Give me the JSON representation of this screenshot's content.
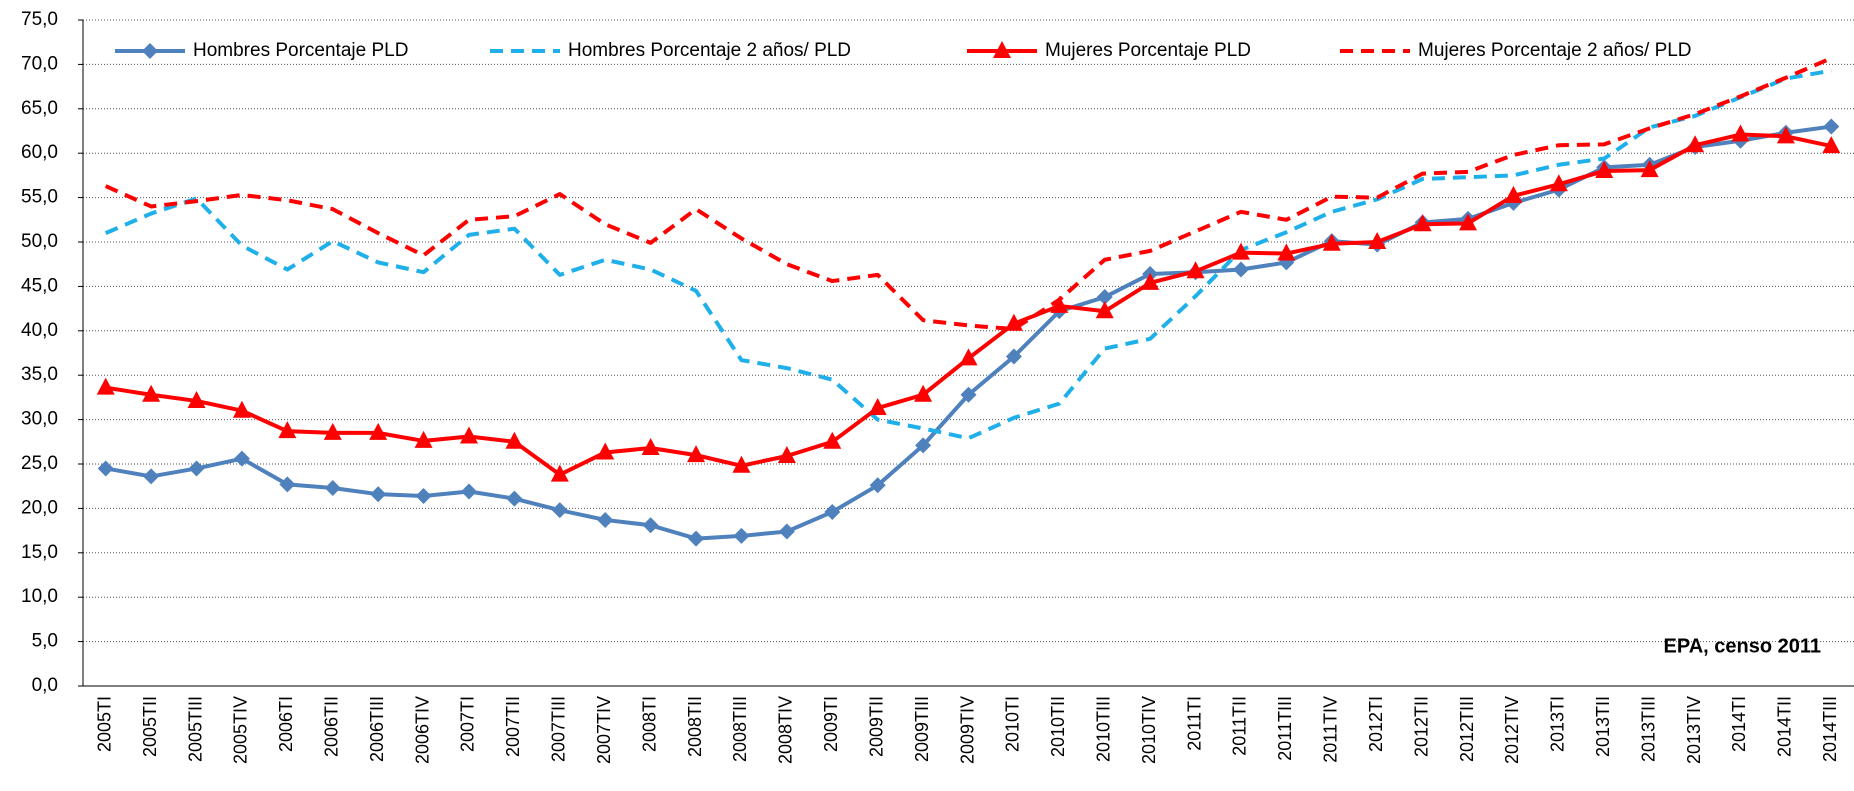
{
  "chart_data": {
    "type": "line",
    "categories": [
      "2005TI",
      "2005TII",
      "2005TIII",
      "2005TIV",
      "2006TI",
      "2006TII",
      "2006TIII",
      "2006TIV",
      "2007TI",
      "2007TII",
      "2007TIII",
      "2007TIV",
      "2008TI",
      "2008TII",
      "2008TIII",
      "2008TIV",
      "2009TI",
      "2009TII",
      "2009TIII",
      "2009TIV",
      "2010TI",
      "2010TII",
      "2010TIII",
      "2010TIV",
      "2011TI",
      "2011TII",
      "2011TIII",
      "2011TIV",
      "2012TI",
      "2012TII",
      "2012TIII",
      "2012TIV",
      "2013TI",
      "2013TII",
      "2013TIII",
      "2013TIV",
      "2014TI",
      "2014TII",
      "2014TIII"
    ],
    "series": [
      {
        "name": "Hombres Porcentaje PLD",
        "color": "#4f81bd",
        "style": "solid",
        "marker": "diamond",
        "values": [
          24.5,
          23.6,
          24.5,
          25.6,
          22.7,
          22.3,
          21.6,
          21.4,
          21.9,
          21.1,
          19.8,
          18.7,
          18.1,
          16.6,
          16.9,
          17.4,
          19.6,
          22.6,
          27.1,
          32.8,
          37.1,
          42.2,
          43.8,
          46.4,
          46.6,
          46.9,
          47.7,
          50.1,
          49.7,
          52.2,
          52.6,
          54.4,
          55.9,
          58.4,
          58.7,
          60.7,
          61.4,
          62.3,
          63.0
        ]
      },
      {
        "name": "Hombres Porcentaje 2 años/ PLD",
        "color": "#1fb0ea",
        "style": "dashed",
        "marker": "none",
        "values": [
          51.0,
          53.2,
          54.9,
          49.6,
          46.9,
          50.1,
          47.7,
          46.6,
          50.8,
          51.5,
          46.3,
          48.0,
          46.9,
          44.5,
          36.7,
          35.8,
          34.5,
          30.0,
          29.0,
          27.9,
          30.2,
          31.8,
          38.0,
          39.1,
          43.9,
          49.1,
          51.1,
          53.4,
          54.8,
          57.1,
          57.3,
          57.5,
          58.7,
          59.4,
          62.9,
          64.2,
          66.3,
          68.4,
          69.3
        ]
      },
      {
        "name": "Mujeres Porcentaje PLD",
        "color": "#ff0000",
        "style": "solid",
        "marker": "triangle",
        "values": [
          33.6,
          32.8,
          32.1,
          31.0,
          28.7,
          28.5,
          28.5,
          27.6,
          28.1,
          27.5,
          23.8,
          26.3,
          26.8,
          26.0,
          24.8,
          25.9,
          27.5,
          31.3,
          32.8,
          36.9,
          40.8,
          42.8,
          42.2,
          45.4,
          46.7,
          48.8,
          48.7,
          49.8,
          50.0,
          52.0,
          52.1,
          55.2,
          56.5,
          58.0,
          58.1,
          60.9,
          62.1,
          61.9,
          60.8
        ]
      },
      {
        "name": "Mujeres Porcentaje 2 años/ PLD",
        "color": "#ff0000",
        "style": "dashed",
        "marker": "none",
        "values": [
          56.3,
          54.0,
          54.6,
          55.3,
          54.7,
          53.7,
          51.0,
          48.5,
          52.5,
          52.9,
          55.4,
          52.0,
          49.9,
          53.7,
          50.4,
          47.5,
          45.6,
          46.3,
          41.2,
          40.6,
          40.2,
          43.5,
          48.0,
          49.0,
          51.2,
          53.4,
          52.5,
          55.1,
          55.0,
          57.7,
          57.9,
          59.8,
          60.9,
          61.0,
          62.8,
          64.4,
          66.4,
          68.5,
          70.7
        ]
      }
    ],
    "ylim": [
      0,
      75
    ],
    "yticks": [
      {
        "value": 0,
        "label": "0,0"
      },
      {
        "value": 5,
        "label": "5,0"
      },
      {
        "value": 10,
        "label": "10,0"
      },
      {
        "value": 15,
        "label": "15,0"
      },
      {
        "value": 20,
        "label": "20,0"
      },
      {
        "value": 25,
        "label": "25,0"
      },
      {
        "value": 30,
        "label": "30,0"
      },
      {
        "value": 35,
        "label": "35,0"
      },
      {
        "value": 40,
        "label": "40,0"
      },
      {
        "value": 45,
        "label": "45,0"
      },
      {
        "value": 50,
        "label": "50,0"
      },
      {
        "value": 55,
        "label": "55,0"
      },
      {
        "value": 60,
        "label": "60,0"
      },
      {
        "value": 65,
        "label": "65,0"
      },
      {
        "value": 70,
        "label": "70,0"
      },
      {
        "value": 75,
        "label": "75,0"
      }
    ],
    "grid": true,
    "legend": "top",
    "annotation": "EPA, censo 2011"
  }
}
